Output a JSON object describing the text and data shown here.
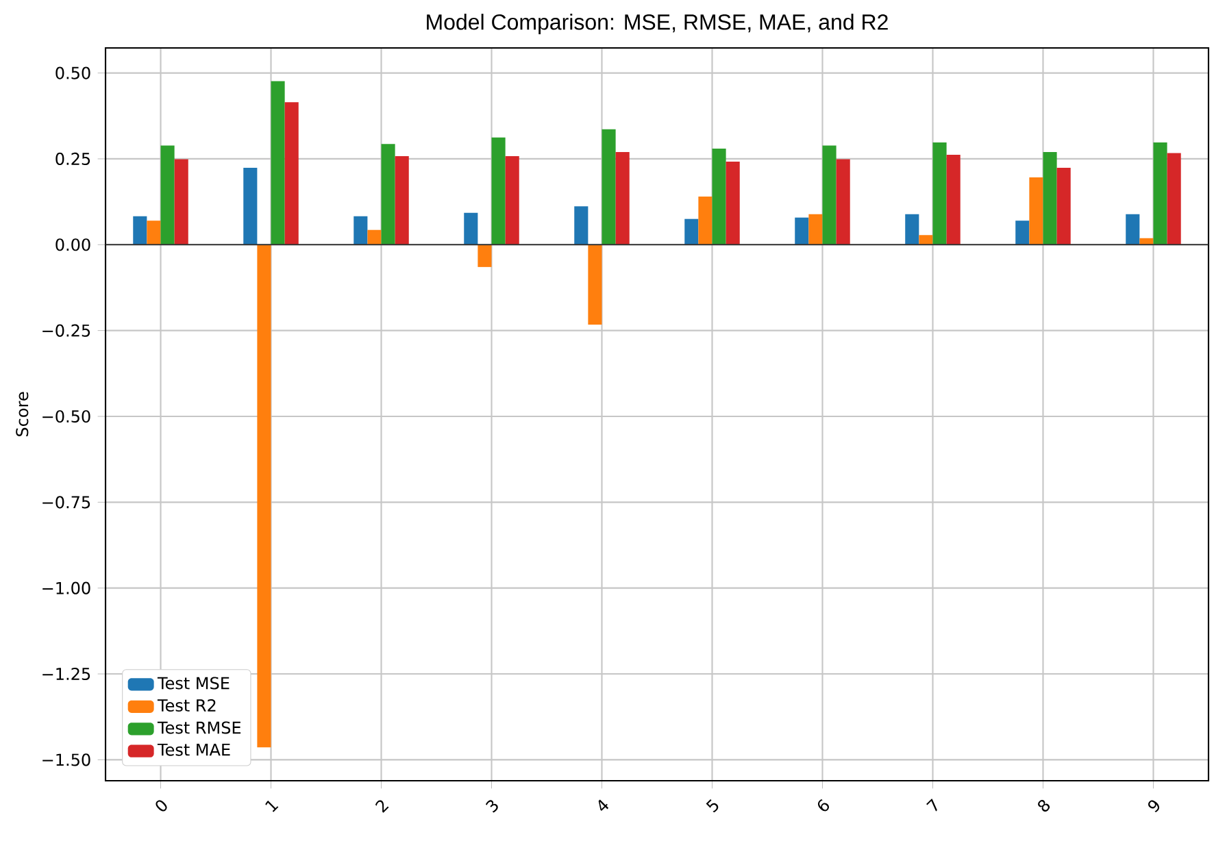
{
  "chart_data": {
    "type": "bar",
    "title": "Model Comparison: MSE, RMSE, MAE, and R2",
    "ylabel": "Score",
    "categories": [
      "0",
      "1",
      "2",
      "3",
      "4",
      "5",
      "6",
      "7",
      "8",
      "9"
    ],
    "series": [
      {
        "name": "Test MSE",
        "color": "#1f77b4",
        "values": [
          0.083,
          0.224,
          0.083,
          0.093,
          0.112,
          0.075,
          0.079,
          0.089,
          0.07,
          0.089
        ]
      },
      {
        "name": "Test R2",
        "color": "#ff7f0e",
        "values": [
          0.07,
          -1.464,
          0.043,
          -0.065,
          -0.233,
          0.14,
          0.089,
          0.028,
          0.196,
          0.019
        ]
      },
      {
        "name": "Test RMSE",
        "color": "#2ca02c",
        "values": [
          0.289,
          0.476,
          0.293,
          0.312,
          0.336,
          0.28,
          0.289,
          0.298,
          0.27,
          0.298
        ]
      },
      {
        "name": "Test MAE",
        "color": "#d62728",
        "values": [
          0.249,
          0.415,
          0.258,
          0.258,
          0.27,
          0.242,
          0.249,
          0.262,
          0.224,
          0.267
        ]
      }
    ],
    "ylim": [
      -1.561,
      0.573
    ],
    "yticks": [
      {
        "value": -1.5,
        "label": "−1.50"
      },
      {
        "value": -1.25,
        "label": "−1.25"
      },
      {
        "value": -1.0,
        "label": "−1.00"
      },
      {
        "value": -0.75,
        "label": "−0.75"
      },
      {
        "value": -0.5,
        "label": "−0.50"
      },
      {
        "value": -0.25,
        "label": "−0.25"
      },
      {
        "value": 0,
        "label": "0.00"
      },
      {
        "value": 0.25,
        "label": "0.25"
      },
      {
        "value": 0.5,
        "label": "0.50"
      }
    ],
    "grid": true,
    "legend": "bottom left"
  }
}
